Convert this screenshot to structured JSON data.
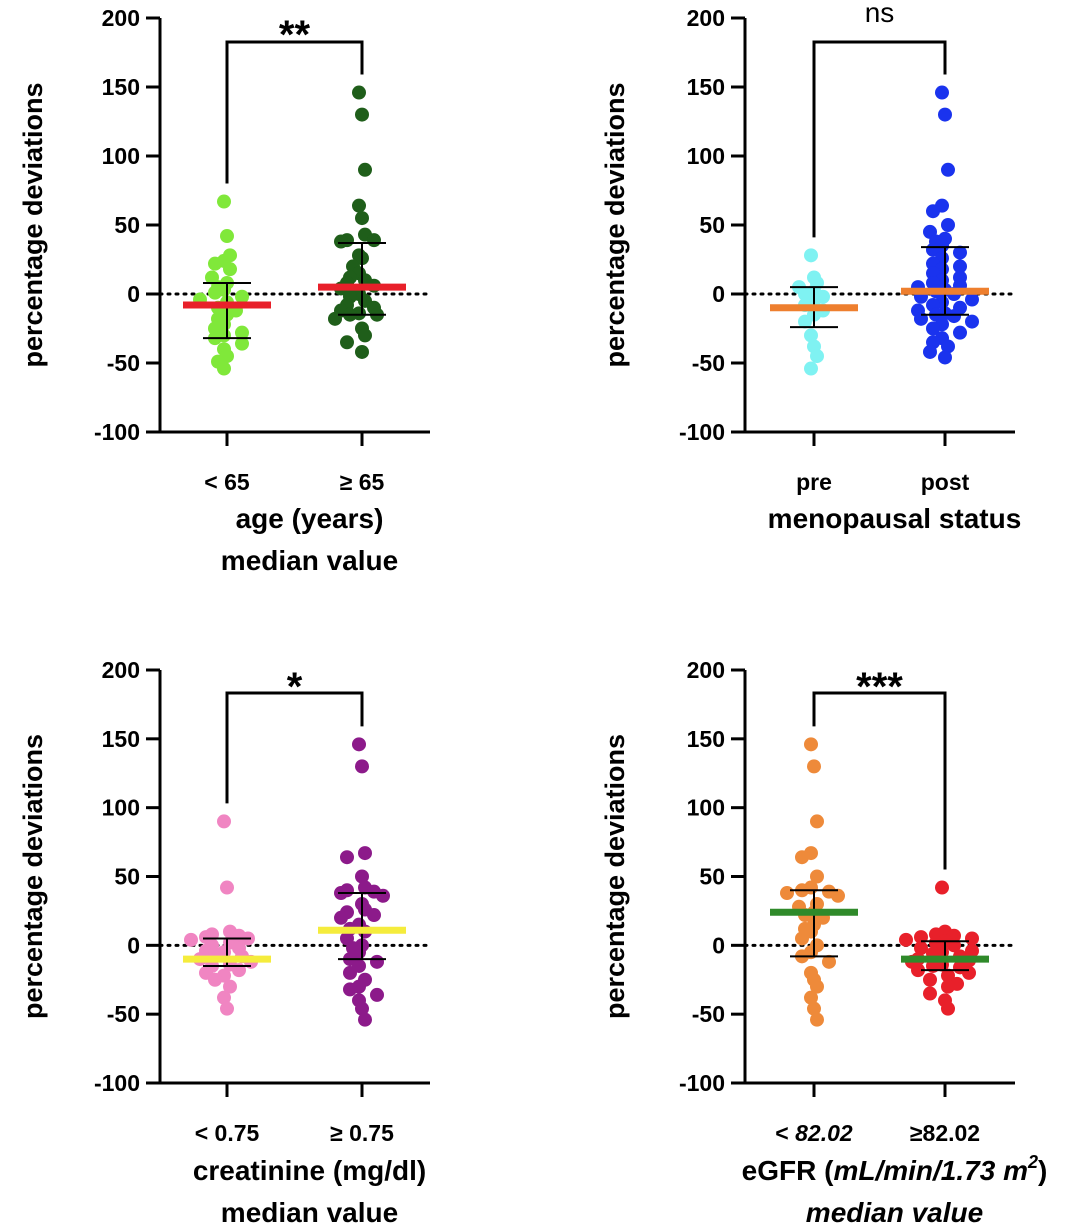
{
  "chart_data": [
    {
      "type": "scatter",
      "panel": "top-left",
      "ylabel": "percentage deviations",
      "ylim": [
        -100,
        200
      ],
      "yticks": [
        "200",
        "150",
        "100",
        "50",
        "0",
        "-50",
        "-100"
      ],
      "categories": [
        "< 65",
        "≥ 65"
      ],
      "xlabel_lines": [
        "age (years)",
        "median value"
      ],
      "significance": "**",
      "median_color": "#e8202a",
      "series": [
        {
          "name": "< 65",
          "color": "#80e83a",
          "median": -8,
          "whisker": [
            -32,
            8
          ],
          "values": [
            67,
            42,
            28,
            24,
            22,
            18,
            12,
            8,
            5,
            3,
            1,
            -2,
            -4,
            -6,
            -10,
            -12,
            -15,
            -18,
            -22,
            -25,
            -28,
            -30,
            -32,
            -36,
            -40,
            -45,
            -49,
            -54
          ]
        },
        {
          "name": "≥ 65",
          "color": "#1f5e1a",
          "median": 5,
          "whisker": [
            -15,
            37
          ],
          "values": [
            146,
            130,
            90,
            64,
            55,
            43,
            39,
            39,
            38,
            28,
            26,
            20,
            15,
            12,
            10,
            8,
            6,
            4,
            0,
            -2,
            -5,
            -8,
            -10,
            -12,
            -14,
            -15,
            -15,
            -18,
            -25,
            -30,
            -35,
            -42
          ]
        }
      ]
    },
    {
      "type": "scatter",
      "panel": "top-right",
      "ylabel": "percentage deviations",
      "ylim": [
        -100,
        200
      ],
      "yticks": [
        "200",
        "150",
        "100",
        "50",
        "0",
        "-50",
        "-100"
      ],
      "categories": [
        "pre",
        "post"
      ],
      "xlabel_lines": [
        "menopausal status"
      ],
      "significance": "ns",
      "median_color": "#ee7f2e",
      "series": [
        {
          "name": "pre",
          "color": "#7ff2f2",
          "median": -10,
          "whisker": [
            -24,
            5
          ],
          "values": [
            28,
            12,
            8,
            5,
            2,
            0,
            -2,
            -5,
            -8,
            -12,
            -15,
            -20,
            -30,
            -38,
            -45,
            -54
          ]
        },
        {
          "name": "post",
          "color": "#1a33ee",
          "median": 2,
          "whisker": [
            -15,
            34
          ],
          "values": [
            146,
            130,
            90,
            64,
            60,
            50,
            45,
            40,
            38,
            35,
            32,
            30,
            26,
            22,
            20,
            18,
            15,
            12,
            10,
            8,
            6,
            5,
            3,
            2,
            0,
            -2,
            -4,
            -6,
            -8,
            -10,
            -12,
            -14,
            -15,
            -16,
            -18,
            -20,
            -22,
            -25,
            -28,
            -32,
            -35,
            -38,
            -42,
            -46
          ]
        }
      ]
    },
    {
      "type": "scatter",
      "panel": "bottom-left",
      "ylabel": "percentage deviations",
      "ylim": [
        -100,
        200
      ],
      "yticks": [
        "200",
        "150",
        "100",
        "50",
        "0",
        "-50",
        "-100"
      ],
      "categories": [
        "< 0.75",
        "≥ 0.75"
      ],
      "xlabel_lines": [
        "creatinine (mg/dl)",
        "median value"
      ],
      "significance": "*",
      "median_color": "#f5ec3c",
      "series": [
        {
          "name": "< 0.75",
          "color": "#f085c2",
          "median": -10,
          "whisker": [
            -15,
            5
          ],
          "values": [
            90,
            42,
            10,
            8,
            7,
            6,
            5,
            4,
            2,
            0,
            -2,
            -4,
            -5,
            -6,
            -8,
            -10,
            -12,
            -14,
            -15,
            -18,
            -20,
            -22,
            -25,
            -30,
            -38,
            -46
          ]
        },
        {
          "name": "≥ 0.75",
          "color": "#8c1a8a",
          "median": 11,
          "whisker": [
            -10,
            38
          ],
          "values": [
            146,
            130,
            67,
            64,
            50,
            42,
            40,
            39,
            38,
            36,
            30,
            26,
            24,
            22,
            20,
            15,
            12,
            10,
            5,
            0,
            -2,
            -5,
            -10,
            -12,
            -15,
            -20,
            -25,
            -30,
            -32,
            -36,
            -40,
            -46,
            -54
          ]
        }
      ]
    },
    {
      "type": "scatter",
      "panel": "bottom-right",
      "ylabel": "percentage deviations",
      "ylim": [
        -100,
        200
      ],
      "yticks": [
        "200",
        "150",
        "100",
        "50",
        "0",
        "-50",
        "-100"
      ],
      "categories": [
        "< 82.02",
        "≥82.02"
      ],
      "xlabel_lines": [
        "eGFR (mL/min/1.73 m2)",
        "median value"
      ],
      "xlabel_parts": {
        "prefix": "eGFR (",
        "unit": "mL/min/1.73 m",
        "sup": "2",
        "suffix": ")",
        "line2": "median value"
      },
      "significance": "***",
      "median_color": "#2f8a2a",
      "series": [
        {
          "name": "< 82.02",
          "color": "#ee8a3a",
          "median": 24,
          "whisker": [
            -8,
            40
          ],
          "values": [
            146,
            130,
            90,
            67,
            64,
            50,
            42,
            40,
            39,
            38,
            36,
            30,
            28,
            24,
            22,
            20,
            15,
            12,
            10,
            5,
            0,
            -5,
            -8,
            -12,
            -20,
            -25,
            -30,
            -38,
            -46,
            -54
          ]
        },
        {
          "name": "≥82.02",
          "color": "#e8202a",
          "median": -10,
          "whisker": [
            -18,
            3
          ],
          "values": [
            42,
            10,
            8,
            7,
            6,
            5,
            4,
            3,
            2,
            0,
            -2,
            -4,
            -5,
            -6,
            -8,
            -10,
            -11,
            -12,
            -14,
            -15,
            -16,
            -18,
            -20,
            -22,
            -25,
            -28,
            -30,
            -35,
            -40,
            -46
          ]
        }
      ]
    }
  ]
}
